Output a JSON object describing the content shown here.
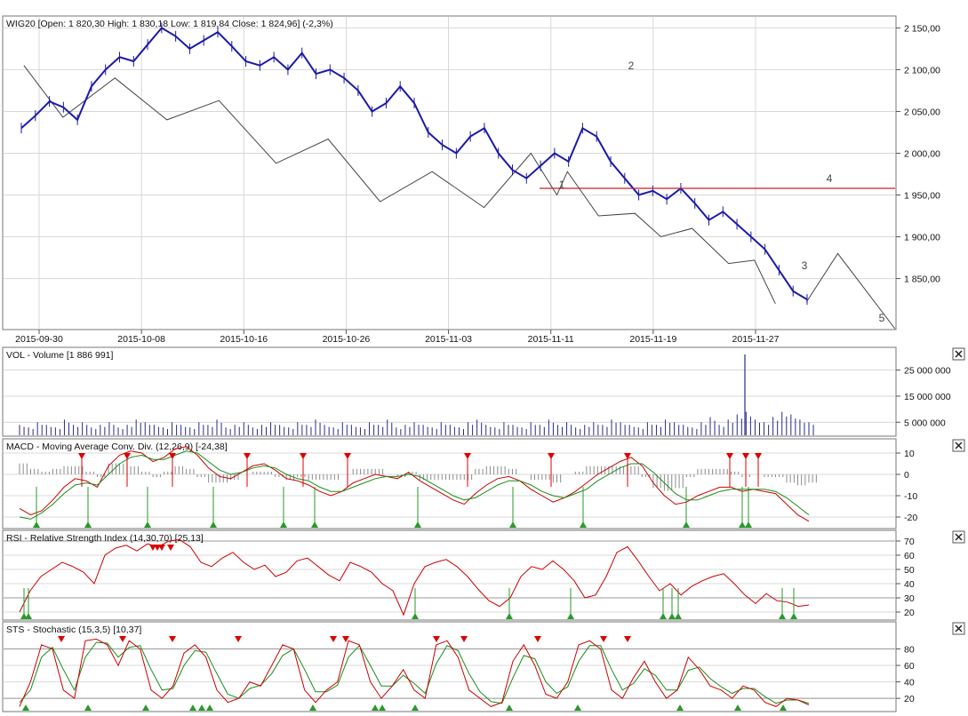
{
  "colors": {
    "price": "#1a1aa8",
    "wave": "#444444",
    "resistance": "#cc2020",
    "volume": "#2a2a88",
    "histogram": "#8c8c8c",
    "line_red": "#cc0000",
    "line_green": "#1a8c1a",
    "signal_up": "#2a9a2a",
    "signal_down": "#dd0000",
    "grid": "#d8d8d8"
  },
  "chart_data": [
    {
      "type": "line",
      "title": "WIG20 [Open: 1 820,30  High: 1 830,18  Low: 1 819,84  Close: 1 824,96]  (-2,3%)",
      "date_labels": [
        "2015-09-30",
        "2015-10-08",
        "2015-10-16",
        "2015-10-26",
        "2015-11-03",
        "2015-11-11",
        "2015-11-19",
        "2015-11-27"
      ],
      "y_ticks": [
        1850,
        1900,
        1950,
        2000,
        2050,
        2100,
        2150
      ],
      "y_tick_labels": [
        "1 850,00",
        "1 900,00",
        "1 950,00",
        "2 000,00",
        "2 050,00",
        "2 100,00",
        "2 150,00"
      ],
      "ylim": [
        1790,
        2160
      ],
      "series": [
        {
          "values": [
            2030,
            2045,
            2062,
            2055,
            2040,
            2080,
            2100,
            2115,
            2110,
            2130,
            2150,
            2140,
            2125,
            2135,
            2145,
            2128,
            2110,
            2105,
            2115,
            2100,
            2120,
            2095,
            2100,
            2090,
            2075,
            2050,
            2060,
            2080,
            2060,
            2025,
            2010,
            2000,
            2020,
            2030,
            2000,
            1980,
            1970,
            1985,
            2000,
            1990,
            2030,
            2020,
            1990,
            1970,
            1950,
            1955,
            1945,
            1958,
            1940,
            1920,
            1930,
            1915,
            1900,
            1885,
            1860,
            1835,
            1825
          ]
        }
      ],
      "wave_line": [
        [
          2015.75,
          2105
        ],
        [
          2016.5,
          2043
        ],
        [
          2017.5,
          2090
        ],
        [
          2018.5,
          2040
        ],
        [
          2019.5,
          2063
        ],
        [
          2020.6,
          1988
        ],
        [
          2021.6,
          2017
        ],
        [
          2022.6,
          1942
        ],
        [
          2023.6,
          1978
        ],
        [
          2024.6,
          1935
        ],
        [
          2025.5,
          2000
        ],
        [
          2026.0,
          1950
        ],
        [
          2026.2,
          1978
        ],
        [
          2026.8,
          1925
        ],
        [
          2027.5,
          1928
        ],
        [
          2028.0,
          1900
        ],
        [
          2028.6,
          1910
        ],
        [
          2029.3,
          1868
        ],
        [
          2029.8,
          1872
        ],
        [
          2030.2,
          1820
        ]
      ],
      "wave_line_2": [
        [
          2030.8,
          1822
        ],
        [
          2031.4,
          1880
        ],
        [
          2032.5,
          1790
        ]
      ],
      "resistance": 1958,
      "annotations": [
        "1",
        "2",
        "3",
        "4",
        "5"
      ]
    },
    {
      "type": "bar",
      "title": "VOL - Volume [1 886 991]",
      "y_ticks": [
        5000000,
        15000000,
        25000000
      ],
      "y_tick_labels": [
        "5 000 000",
        "15 000 000",
        "25 000 000"
      ],
      "ylim": [
        0,
        32000000
      ],
      "values": [
        4,
        3,
        5,
        4,
        3,
        6,
        4,
        5,
        3,
        4,
        5,
        3,
        4,
        6,
        5,
        4,
        3,
        5,
        4,
        3,
        5,
        4,
        6,
        3,
        4,
        5,
        3,
        4,
        5,
        4,
        3,
        5,
        4,
        6,
        4,
        3,
        5,
        4,
        3,
        5,
        4,
        6,
        3,
        4,
        5,
        4,
        3,
        5,
        4,
        3,
        5,
        6,
        4,
        3,
        5,
        4,
        3,
        5,
        4,
        6,
        4,
        5,
        3,
        4,
        5,
        4,
        6,
        5,
        4,
        3,
        5,
        4,
        6,
        5,
        4,
        3,
        5,
        7,
        4,
        6,
        8,
        9,
        6,
        5,
        7,
        9,
        8,
        6,
        5
      ],
      "unit_millions": true,
      "spike": 31
    },
    {
      "type": "line",
      "title": "MACD - Moving Average Conv. Div. (12,26,9) [-24,38]",
      "y_ticks": [
        -20,
        -10,
        0,
        10
      ],
      "y_tick_labels": [
        "-20",
        "-10",
        "0",
        "10"
      ],
      "ylim": [
        -25,
        15
      ],
      "series": [
        {
          "name": "",
          "values": [
            -16,
            -19,
            -17,
            -12,
            -6,
            -2,
            -3,
            -6,
            4,
            9,
            11,
            10,
            6,
            8,
            12,
            13,
            9,
            3,
            -1,
            -2,
            1,
            4,
            5,
            2,
            -2,
            -3,
            -5,
            -8,
            -10,
            -8,
            -4,
            -2,
            0,
            -1,
            -2,
            1,
            -3,
            -6,
            -9,
            -12,
            -14,
            -9,
            -5,
            -2,
            -1,
            -3,
            -7,
            -10,
            -13,
            -11,
            -8,
            -4,
            0,
            3,
            6,
            8,
            4,
            -4,
            -10,
            -14,
            -13,
            -10,
            -8,
            -6,
            -6,
            -8,
            -7,
            -8,
            -9,
            -14,
            -19,
            -22
          ]
        },
        {
          "name": "",
          "values": [
            -20,
            -21,
            -18,
            -14,
            -9,
            -5,
            -4,
            -5,
            0,
            5,
            8,
            9,
            7,
            7,
            9,
            11,
            10,
            6,
            2,
            0,
            1,
            3,
            4,
            3,
            0,
            -2,
            -3,
            -6,
            -8,
            -8,
            -6,
            -4,
            -2,
            -1,
            -1,
            0,
            -1,
            -4,
            -7,
            -10,
            -12,
            -11,
            -8,
            -5,
            -3,
            -3,
            -5,
            -8,
            -10,
            -11,
            -9,
            -7,
            -3,
            0,
            3,
            5,
            5,
            1,
            -4,
            -9,
            -12,
            -12,
            -10,
            -8,
            -7,
            -7,
            -7,
            -7,
            -8,
            -11,
            -15,
            -19
          ]
        }
      ]
    },
    {
      "type": "line",
      "title": "RSI - Relative Strength Index (14,30,70) [25,13]",
      "y_ticks": [
        20,
        30,
        40,
        50,
        60,
        70
      ],
      "y_tick_labels": [
        "20",
        "30",
        "40",
        "50",
        "60",
        "70"
      ],
      "ylim": [
        15,
        75
      ],
      "bands": [
        30,
        70
      ],
      "series": [
        {
          "name": "",
          "values": [
            20,
            35,
            45,
            50,
            55,
            52,
            48,
            40,
            60,
            65,
            67,
            63,
            68,
            66,
            70,
            71,
            66,
            55,
            52,
            58,
            62,
            55,
            50,
            53,
            45,
            48,
            56,
            58,
            52,
            46,
            42,
            55,
            52,
            48,
            40,
            35,
            18,
            40,
            52,
            55,
            57,
            52,
            45,
            36,
            28,
            24,
            30,
            45,
            52,
            50,
            56,
            50,
            42,
            30,
            32,
            45,
            62,
            66,
            56,
            45,
            35,
            40,
            32,
            38,
            42,
            45,
            47,
            40,
            32,
            26,
            33,
            28,
            27,
            24,
            25
          ]
        }
      ]
    },
    {
      "type": "line",
      "title": "STS - Stochastic (15,3,5) [10,37]",
      "y_ticks": [
        20,
        40,
        60,
        80
      ],
      "y_tick_labels": [
        "20",
        "40",
        "60",
        "80"
      ],
      "ylim": [
        5,
        100
      ],
      "bands": [
        20,
        80
      ],
      "series": [
        {
          "name": "",
          "values": [
            10,
            40,
            85,
            80,
            30,
            20,
            90,
            92,
            85,
            60,
            90,
            80,
            30,
            20,
            35,
            75,
            85,
            70,
            30,
            15,
            20,
            40,
            35,
            60,
            85,
            80,
            30,
            15,
            30,
            40,
            90,
            85,
            40,
            20,
            35,
            55,
            30,
            20,
            85,
            90,
            70,
            30,
            20,
            10,
            15,
            65,
            85,
            60,
            25,
            20,
            40,
            85,
            90,
            80,
            30,
            20,
            45,
            65,
            40,
            20,
            30,
            70,
            55,
            35,
            30,
            20,
            35,
            30,
            15,
            10,
            20,
            18,
            12
          ]
        },
        {
          "name": "",
          "values": [
            15,
            30,
            70,
            82,
            55,
            30,
            70,
            88,
            87,
            70,
            82,
            84,
            55,
            30,
            32,
            60,
            78,
            76,
            50,
            25,
            20,
            32,
            36,
            50,
            72,
            80,
            55,
            28,
            28,
            36,
            70,
            84,
            60,
            35,
            35,
            48,
            38,
            26,
            62,
            84,
            78,
            50,
            28,
            16,
            14,
            45,
            72,
            68,
            40,
            26,
            34,
            65,
            84,
            84,
            55,
            30,
            38,
            56,
            48,
            30,
            30,
            54,
            58,
            44,
            34,
            26,
            32,
            32,
            22,
            14,
            18,
            18,
            14
          ]
        }
      ]
    }
  ]
}
